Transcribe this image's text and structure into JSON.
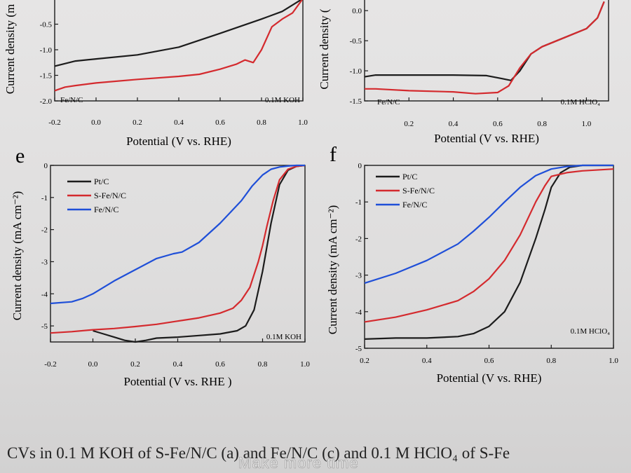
{
  "caption": "CVs in 0.1 M KOH of S-Fe/N/C (a) and Fe/N/C (c) and 0.1 M HClO₄ of S-Fe",
  "watermark": "Make more time",
  "colors": {
    "black": "#1c1c1c",
    "red": "#d42a2e",
    "blue": "#1f4fd8"
  },
  "chart_data": [
    {
      "id": "c",
      "panel_label": "",
      "type": "line",
      "xlabel": "Potential (V vs. RHE)",
      "ylabel": "Current density (m",
      "xlim": [
        -0.2,
        1.0
      ],
      "ylim": [
        -2.0,
        0.0
      ],
      "xticks": [
        "-0.2",
        "0.0",
        "0.2",
        "0.4",
        "0.6",
        "0.8",
        "1.0"
      ],
      "yticks": [
        "-2.0",
        "-1.5",
        "-1.0",
        "-0.5"
      ],
      "legend": [],
      "text_left": "Fe/N/C",
      "text_right": "0.1M KOH",
      "series": [
        {
          "color": "black",
          "x": [
            -0.2,
            -0.1,
            0.0,
            0.2,
            0.4,
            0.6,
            0.8,
            0.9,
            0.96,
            1.0
          ],
          "y": [
            -1.32,
            -1.22,
            -1.18,
            -1.1,
            -0.95,
            -0.68,
            -0.4,
            -0.25,
            -0.1,
            0.0
          ]
        },
        {
          "color": "red",
          "x": [
            -0.2,
            -0.15,
            -0.1,
            0.0,
            0.2,
            0.4,
            0.5,
            0.6,
            0.68,
            0.72,
            0.76,
            0.8,
            0.85,
            0.9,
            0.95,
            1.0
          ],
          "y": [
            -1.8,
            -1.73,
            -1.7,
            -1.65,
            -1.58,
            -1.52,
            -1.48,
            -1.38,
            -1.28,
            -1.2,
            -1.25,
            -1.0,
            -0.55,
            -0.4,
            -0.28,
            0.0
          ]
        }
      ]
    },
    {
      "id": "d",
      "panel_label": "",
      "type": "line",
      "xlabel": "Potential (V vs. RHE)",
      "ylabel": "Current density (",
      "xlim": [
        0.0,
        1.1
      ],
      "ylim": [
        -1.5,
        0.2
      ],
      "xticks": [
        "0.2",
        "0.4",
        "0.6",
        "0.8",
        "1.0"
      ],
      "yticks": [
        "0.0",
        "-0.5",
        "-1.0",
        "-1.5"
      ],
      "legend": [],
      "text_left": "Fe/N/C",
      "text_right": "0.1M HClO₄",
      "series": [
        {
          "color": "black",
          "x": [
            0.0,
            0.05,
            0.2,
            0.4,
            0.55,
            0.62,
            0.66,
            0.7,
            0.75,
            0.8,
            0.9,
            1.0,
            1.05,
            1.08
          ],
          "y": [
            -1.1,
            -1.07,
            -1.07,
            -1.07,
            -1.08,
            -1.13,
            -1.16,
            -1.0,
            -0.72,
            -0.6,
            -0.45,
            -0.3,
            -0.12,
            0.15
          ]
        },
        {
          "color": "red",
          "x": [
            0.0,
            0.05,
            0.2,
            0.4,
            0.5,
            0.6,
            0.65,
            0.7,
            0.75,
            0.8,
            0.9,
            1.0,
            1.05,
            1.08
          ],
          "y": [
            -1.3,
            -1.3,
            -1.33,
            -1.35,
            -1.38,
            -1.36,
            -1.25,
            -0.95,
            -0.72,
            -0.6,
            -0.45,
            -0.3,
            -0.12,
            0.15
          ]
        }
      ]
    },
    {
      "id": "e",
      "panel_label": "e",
      "type": "line",
      "xlabel": "Potential (V vs. RHE )",
      "ylabel": "Current density (mA cm⁻²)",
      "xlim": [
        -0.2,
        1.0
      ],
      "ylim": [
        -5.5,
        0.0
      ],
      "xticks": [
        "-0.2",
        "0.0",
        "0.2",
        "0.4",
        "0.6",
        "0.8",
        "1.0"
      ],
      "yticks": [
        "0",
        "-1",
        "-2",
        "-3",
        "-4",
        "-5"
      ],
      "legend": [
        "Pt/C",
        "S-Fe/N/C",
        "Fe/N/C"
      ],
      "text_left": "",
      "text_right": "0.1M KOH",
      "series": [
        {
          "name": "Pt/C",
          "color": "black",
          "x": [
            0.0,
            0.05,
            0.1,
            0.15,
            0.2,
            0.25,
            0.3,
            0.4,
            0.5,
            0.6,
            0.68,
            0.72,
            0.76,
            0.8,
            0.84,
            0.88,
            0.92,
            0.96,
            1.0
          ],
          "y": [
            -5.15,
            -5.25,
            -5.35,
            -5.45,
            -5.5,
            -5.45,
            -5.38,
            -5.35,
            -5.3,
            -5.25,
            -5.15,
            -5.0,
            -4.5,
            -3.3,
            -1.8,
            -0.6,
            -0.15,
            -0.03,
            0.0
          ]
        },
        {
          "name": "S-Fe/N/C",
          "color": "red",
          "x": [
            -0.2,
            -0.1,
            0.0,
            0.1,
            0.2,
            0.3,
            0.4,
            0.5,
            0.6,
            0.66,
            0.7,
            0.74,
            0.78,
            0.8,
            0.82,
            0.85,
            0.88,
            0.92,
            0.96,
            1.0
          ],
          "y": [
            -5.22,
            -5.18,
            -5.12,
            -5.08,
            -5.02,
            -4.95,
            -4.85,
            -4.75,
            -4.6,
            -4.45,
            -4.2,
            -3.8,
            -3.0,
            -2.5,
            -1.9,
            -1.1,
            -0.45,
            -0.12,
            -0.03,
            0.0
          ]
        },
        {
          "name": "Fe/N/C",
          "color": "blue",
          "x": [
            -0.2,
            -0.1,
            -0.05,
            0.0,
            0.1,
            0.2,
            0.3,
            0.38,
            0.42,
            0.5,
            0.6,
            0.7,
            0.75,
            0.8,
            0.84,
            0.88,
            0.92,
            0.96,
            1.0
          ],
          "y": [
            -4.3,
            -4.25,
            -4.15,
            -4.0,
            -3.6,
            -3.25,
            -2.9,
            -2.75,
            -2.7,
            -2.4,
            -1.8,
            -1.1,
            -0.65,
            -0.3,
            -0.12,
            -0.05,
            -0.02,
            0.0,
            0.0
          ]
        }
      ]
    },
    {
      "id": "f",
      "panel_label": "f",
      "type": "line",
      "xlabel": "Potential (V vs. RHE)",
      "ylabel": "Current density (mA cm⁻²)",
      "xlim": [
        0.2,
        1.0
      ],
      "ylim": [
        -5.0,
        0.0
      ],
      "xticks": [
        "0.2",
        "0.4",
        "0.6",
        "0.8",
        "1.0"
      ],
      "yticks": [
        "0",
        "-1",
        "-2",
        "-3",
        "-4",
        "-5"
      ],
      "legend": [
        "Pt/C",
        "S-Fe/N/C",
        "Fe/N/C"
      ],
      "text_left": "",
      "text_right": "0.1M HClO₄",
      "series": [
        {
          "name": "Pt/C",
          "color": "black",
          "x": [
            0.2,
            0.3,
            0.4,
            0.5,
            0.55,
            0.6,
            0.65,
            0.7,
            0.75,
            0.78,
            0.8,
            0.83,
            0.86,
            0.9,
            1.0
          ],
          "y": [
            -4.75,
            -4.72,
            -4.72,
            -4.68,
            -4.6,
            -4.4,
            -4.0,
            -3.2,
            -2.0,
            -1.2,
            -0.6,
            -0.2,
            -0.05,
            0.0,
            0.0
          ]
        },
        {
          "name": "S-Fe/N/C",
          "color": "red",
          "x": [
            0.2,
            0.3,
            0.4,
            0.5,
            0.55,
            0.6,
            0.65,
            0.7,
            0.75,
            0.78,
            0.8,
            0.85,
            0.9,
            1.0
          ],
          "y": [
            -4.28,
            -4.15,
            -3.95,
            -3.7,
            -3.45,
            -3.1,
            -2.6,
            -1.9,
            -1.0,
            -0.55,
            -0.3,
            -0.2,
            -0.15,
            -0.1
          ]
        },
        {
          "name": "Fe/N/C",
          "color": "blue",
          "x": [
            0.2,
            0.3,
            0.4,
            0.5,
            0.55,
            0.6,
            0.65,
            0.7,
            0.75,
            0.8,
            0.85,
            0.9,
            1.0
          ],
          "y": [
            -3.22,
            -2.95,
            -2.6,
            -2.15,
            -1.8,
            -1.42,
            -1.0,
            -0.6,
            -0.28,
            -0.1,
            -0.03,
            0.0,
            0.0
          ]
        }
      ]
    }
  ]
}
